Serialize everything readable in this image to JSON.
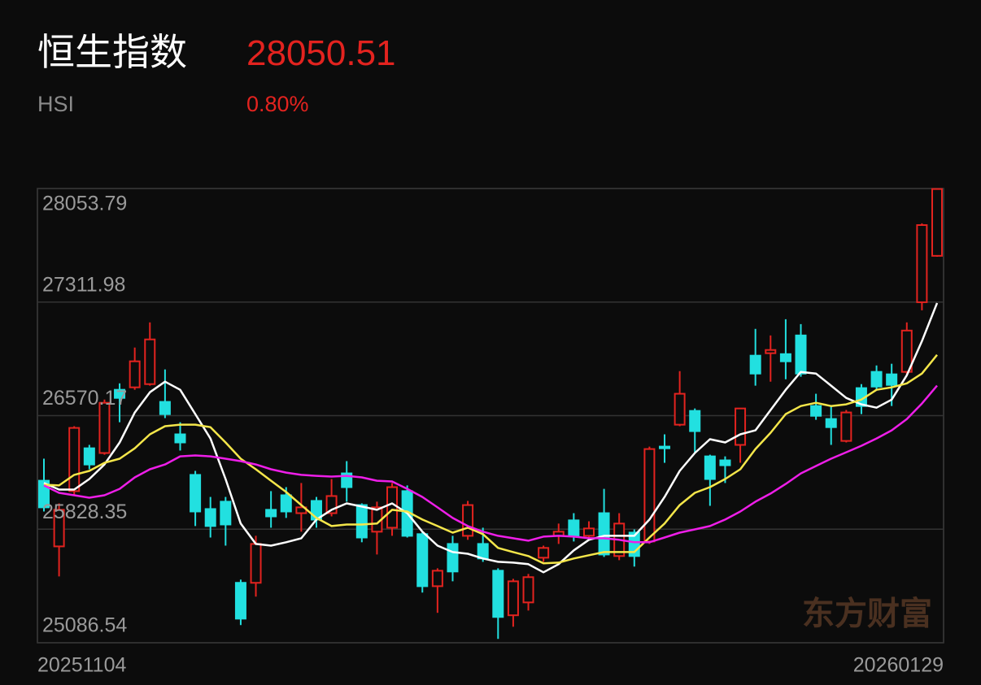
{
  "header": {
    "name": "恒生指数",
    "code": "HSI",
    "price": "28050.51",
    "change": "0.80%"
  },
  "chart_data": {
    "type": "candlestick",
    "x": [
      "20251104",
      null,
      null,
      null,
      null,
      null,
      null,
      null,
      null,
      null,
      null,
      null,
      null,
      null,
      null,
      null,
      null,
      null,
      null,
      null,
      null,
      null,
      null,
      null,
      null,
      null,
      null,
      null,
      null,
      null,
      null,
      null,
      null,
      null,
      null,
      null,
      null,
      null,
      null,
      null,
      null,
      null,
      null,
      null,
      null,
      null,
      null,
      null,
      null,
      null,
      null,
      null,
      null,
      null,
      null,
      null,
      null,
      null,
      null,
      "20260129"
    ],
    "open": [
      26145,
      25716,
      26077,
      26357,
      26326,
      26739,
      26755,
      26776,
      26660,
      26448,
      26183,
      25960,
      26008,
      25478,
      25478,
      25955,
      26050,
      25933,
      26013,
      25933,
      26193,
      25986,
      25812,
      25838,
      26077,
      25796,
      25456,
      25732,
      25785,
      25732,
      25557,
      25266,
      25350,
      25642,
      25785,
      25886,
      25785,
      25933,
      25653,
      25806,
      25748,
      26368,
      26511,
      26601,
      26304,
      26278,
      26379,
      26962,
      26978,
      26972,
      27094,
      26633,
      26548,
      26405,
      26750,
      26856,
      26840,
      26856,
      27311,
      27614
    ],
    "high": [
      26289,
      25997,
      26501,
      26379,
      26675,
      26781,
      27015,
      27179,
      26872,
      26527,
      26209,
      26039,
      26039,
      25499,
      25785,
      26077,
      26103,
      26130,
      26039,
      26156,
      26273,
      25997,
      26008,
      26130,
      26114,
      25812,
      25573,
      25785,
      26013,
      25838,
      25573,
      25504,
      25536,
      25721,
      25865,
      25933,
      25880,
      26092,
      25933,
      25827,
      26368,
      26448,
      26861,
      26617,
      26315,
      26304,
      26617,
      27137,
      27094,
      27200,
      27168,
      26713,
      26633,
      26607,
      26776,
      26898,
      26909,
      27179,
      27826,
      28053.79
    ],
    "low": [
      25944,
      25520,
      26050,
      26220,
      26315,
      26527,
      26739,
      26766,
      26554,
      26342,
      25849,
      25774,
      25721,
      25202,
      25388,
      25838,
      25902,
      25812,
      25838,
      25912,
      26008,
      25743,
      25663,
      25785,
      25774,
      25414,
      25282,
      25488,
      25759,
      25615,
      25112,
      25191,
      25297,
      25615,
      25732,
      25748,
      25759,
      25647,
      25626,
      25584,
      25732,
      26262,
      26501,
      26331,
      25981,
      26130,
      26262,
      26766,
      26792,
      26808,
      26824,
      26543,
      26379,
      26395,
      26580,
      26739,
      26633,
      26834,
      27258,
      27608
    ],
    "close": [
      25971,
      25955,
      26490,
      26251,
      26654,
      26686,
      26925,
      27068,
      26580,
      26395,
      25944,
      25849,
      25859,
      25244,
      25732,
      25912,
      25944,
      25971,
      25891,
      26045,
      26103,
      25774,
      25971,
      26103,
      25785,
      25456,
      25557,
      25552,
      25986,
      25637,
      25255,
      25488,
      25515,
      25706,
      25812,
      25785,
      25833,
      25663,
      25865,
      25653,
      26352,
      26357,
      26713,
      26469,
      26156,
      26246,
      26617,
      26845,
      26999,
      26925,
      26845,
      26569,
      26495,
      26591,
      26633,
      26760,
      26771,
      27126,
      27815,
      28050.51
    ],
    "up_color": "#e3231f",
    "down_color": "#22e0e0",
    "ylim": [
      25086.54,
      28053.79
    ],
    "yticks": [
      25086.54,
      25828.35,
      26570.17,
      27311.98,
      28053.79
    ],
    "grid": true,
    "moving_averages": [
      {
        "color": "#ffffff",
        "values": [
          26130,
          26087,
          26087,
          26156,
          26251,
          26395,
          26591,
          26723,
          26792,
          26739,
          26580,
          26421,
          26156,
          25865,
          25732,
          25721,
          25743,
          25769,
          25891,
          25955,
          25997,
          25976,
          25955,
          25997,
          25933,
          25812,
          25721,
          25679,
          25668,
          25637,
          25615,
          25610,
          25600,
          25547,
          25600,
          25690,
          25759,
          25785,
          25785,
          25785,
          25891,
          26039,
          26209,
          26326,
          26416,
          26395,
          26448,
          26474,
          26607,
          26739,
          26856,
          26845,
          26766,
          26686,
          26644,
          26622,
          26675,
          26834,
          27057,
          27306
        ]
      },
      {
        "color": "#f4e64a",
        "values": [
          26119,
          26114,
          26183,
          26209,
          26262,
          26289,
          26357,
          26448,
          26501,
          26511,
          26511,
          26495,
          26395,
          26289,
          26220,
          26145,
          26071,
          25986,
          25902,
          25849,
          25859,
          25859,
          25865,
          25955,
          25944,
          25891,
          25849,
          25806,
          25838,
          25796,
          25706,
          25679,
          25653,
          25605,
          25610,
          25637,
          25658,
          25679,
          25679,
          25679,
          25774,
          25865,
          25986,
          26066,
          26103,
          26156,
          26220,
          26352,
          26458,
          26580,
          26633,
          26654,
          26633,
          26644,
          26675,
          26739,
          26755,
          26781,
          26845,
          26967
        ]
      },
      {
        "color": "#ee1ee8",
        "values": [
          26114,
          26066,
          26050,
          26034,
          26050,
          26092,
          26167,
          26220,
          26251,
          26304,
          26310,
          26304,
          26289,
          26273,
          26251,
          26220,
          26198,
          26183,
          26177,
          26172,
          26177,
          26167,
          26145,
          26140,
          26092,
          26039,
          25971,
          25902,
          25849,
          25812,
          25785,
          25769,
          25753,
          25780,
          25785,
          25780,
          25769,
          25769,
          25759,
          25743,
          25743,
          25774,
          25806,
          25827,
          25849,
          25891,
          25944,
          26008,
          26061,
          26124,
          26193,
          26241,
          26289,
          26331,
          26373,
          26421,
          26474,
          26548,
          26649,
          26766
        ]
      }
    ],
    "watermark": "东方财富"
  }
}
